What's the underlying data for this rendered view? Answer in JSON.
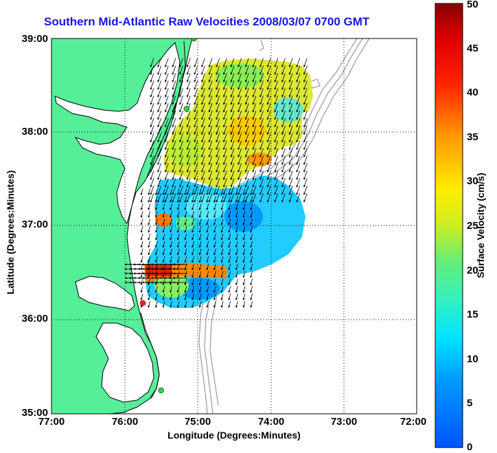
{
  "title": "Southern Mid-Atlantic Raw Velocities 2008/03/07 0700 GMT",
  "xlabel": "Longitude (Degrees:Minutes)",
  "ylabel": "Latitude (Degrees:Minutes)",
  "x_ticks": [
    "77:00",
    "76:00",
    "75:00",
    "74:00",
    "73:00",
    "72:00"
  ],
  "y_ticks": [
    "39:00",
    "38:00",
    "37:00",
    "36:00",
    "35:00"
  ],
  "colorbar": {
    "label": "Surface Velocity (cm/s)",
    "ticks": [
      "50",
      "45",
      "40",
      "35",
      "30",
      "25",
      "20",
      "15",
      "10",
      "5",
      "0"
    ],
    "range": [
      0,
      50
    ]
  },
  "colors": {
    "land": "#55ee99",
    "water": "#ffffff",
    "title": "#1515e8",
    "bathymetry": "#9a9a9a",
    "station": "#33cc44",
    "station_red": "#ee2222"
  },
  "chart_data": {
    "type": "heatmap",
    "lon_range": [
      -77,
      -72
    ],
    "lat_range": [
      35,
      39
    ],
    "grid": true,
    "stations": [
      {
        "lon": -75.05,
        "lat": 39.0,
        "color": "green"
      },
      {
        "lon": -75.15,
        "lat": 38.25,
        "color": "green"
      },
      {
        "lon": -75.75,
        "lat": 36.18,
        "color": "red"
      },
      {
        "lon": -75.5,
        "lat": 35.25,
        "color": "green"
      }
    ],
    "velocity_regions": [
      {
        "name": "northern",
        "lon_min": -75.6,
        "lon_max": -73.5,
        "lat_min": 37.35,
        "lat_max": 38.8,
        "speed_cm_s": 22,
        "direction_deg": 200
      },
      {
        "name": "southern",
        "lon_min": -75.75,
        "lon_max": -74.2,
        "lat_min": 36.2,
        "lat_max": 37.45,
        "speed_cm_s": 10,
        "direction_deg": 195
      },
      {
        "name": "jet",
        "lon_min": -75.8,
        "lon_max": -75.1,
        "lat_min": 36.4,
        "lat_max": 36.6,
        "speed_cm_s": 42,
        "direction_deg": 270
      }
    ]
  }
}
